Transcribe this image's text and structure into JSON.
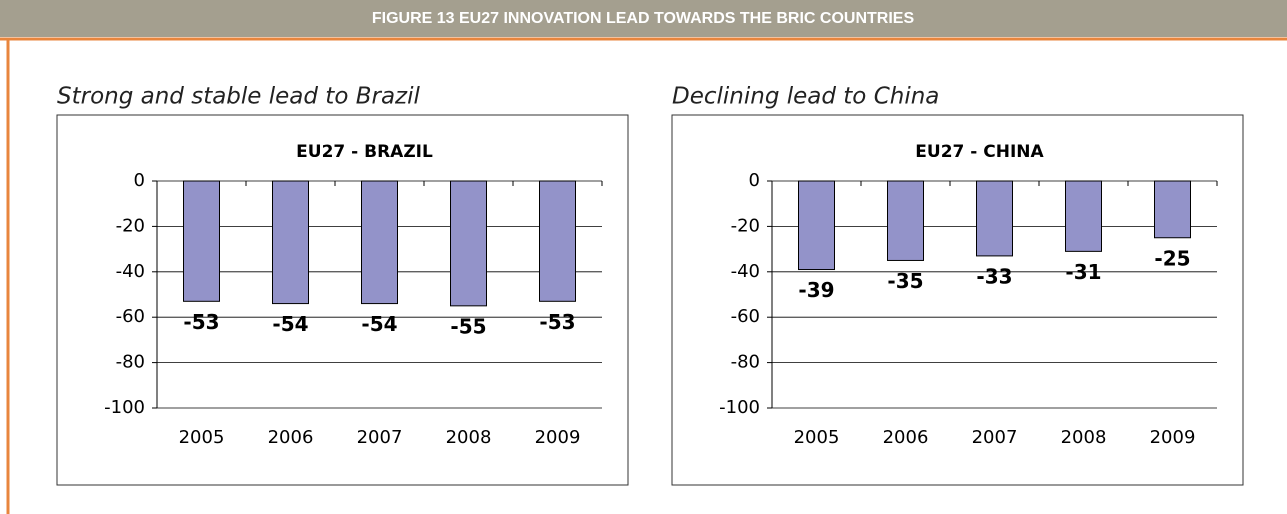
{
  "header": {
    "title": "FIGURE 13 EU27 INNOVATION LEAD TOWARDS THE BRIC COUNTRIES"
  },
  "chart_data": [
    {
      "type": "bar",
      "subtitle": "Strong and stable lead to Brazil",
      "title": "EU27 - BRAZIL",
      "categories": [
        "2005",
        "2006",
        "2007",
        "2008",
        "2009"
      ],
      "values": [
        -53,
        -54,
        -54,
        -55,
        -53
      ],
      "color": "#9393c9",
      "ylim": [
        -100,
        0
      ],
      "yticks": [
        0,
        -20,
        -40,
        -60,
        -80,
        -100
      ],
      "grid": true
    },
    {
      "type": "bar",
      "subtitle": "Declining lead to China",
      "title": "EU27 - CHINA",
      "categories": [
        "2005",
        "2006",
        "2007",
        "2008",
        "2009"
      ],
      "values": [
        -39,
        -35,
        -33,
        -31,
        -25
      ],
      "color": "#9393c9",
      "ylim": [
        -100,
        0
      ],
      "yticks": [
        0,
        -20,
        -40,
        -60,
        -80,
        -100
      ],
      "grid": true
    }
  ]
}
